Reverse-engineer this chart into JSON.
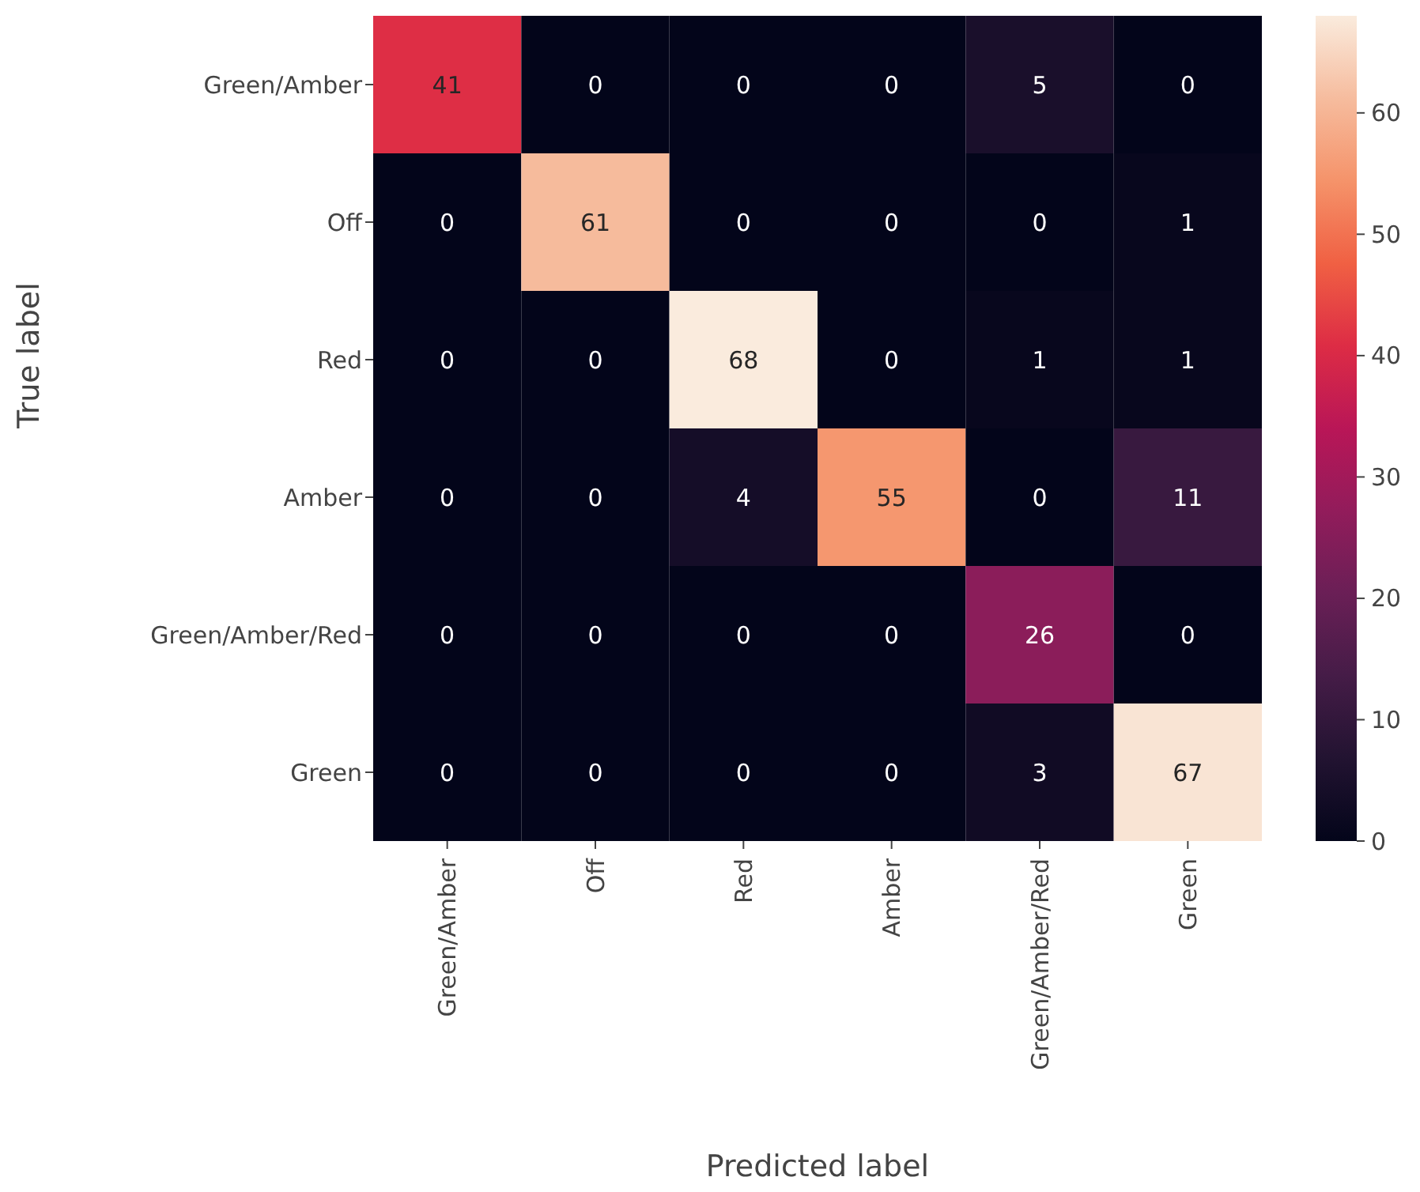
{
  "chart_data": {
    "type": "heatmap",
    "xlabel": "Predicted label",
    "ylabel": "True label",
    "categories": [
      "Green/Amber",
      "Off",
      "Red",
      "Amber",
      "Green/Amber/Red",
      "Green"
    ],
    "y_categories": [
      "Green/Amber",
      "Off",
      "Red",
      "Amber",
      "Green/Amber/Red",
      "Green"
    ],
    "cells": [
      [
        41,
        0,
        0,
        0,
        5,
        0
      ],
      [
        0,
        61,
        0,
        0,
        0,
        1
      ],
      [
        0,
        0,
        68,
        0,
        1,
        1
      ],
      [
        0,
        0,
        4,
        55,
        0,
        11
      ],
      [
        0,
        0,
        0,
        0,
        26,
        0
      ],
      [
        0,
        0,
        0,
        0,
        3,
        67
      ]
    ],
    "clim": [
      0,
      68
    ],
    "cticks": [
      0,
      10,
      20,
      30,
      40,
      50,
      60
    ],
    "data_labels": true
  }
}
